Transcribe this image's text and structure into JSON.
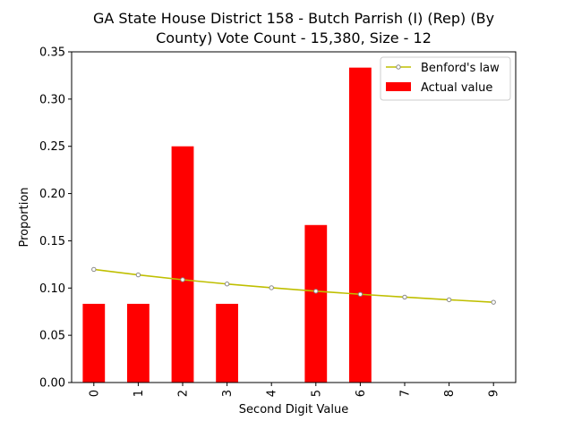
{
  "chart_data": {
    "type": "bar",
    "title_line1": "GA State House District 158 - Butch Parrish (I) (Rep) (By",
    "title_line2": "County) Vote Count - 15,380, Size - 12",
    "xlabel": "Second Digit Value",
    "ylabel": "Proportion",
    "categories": [
      "0",
      "1",
      "2",
      "3",
      "4",
      "5",
      "6",
      "7",
      "8",
      "9"
    ],
    "ylim": [
      0,
      0.35
    ],
    "yticks": [
      "0.00",
      "0.05",
      "0.10",
      "0.15",
      "0.20",
      "0.25",
      "0.30",
      "0.35"
    ],
    "series": [
      {
        "name": "Actual value",
        "kind": "bar",
        "color": "#ff0000",
        "values": [
          0.0833,
          0.0833,
          0.25,
          0.0833,
          0,
          0.1667,
          0.3333,
          0,
          0,
          0
        ]
      },
      {
        "name": "Benford's law",
        "kind": "line",
        "color": "#bfbf00",
        "values": [
          0.1197,
          0.1139,
          0.1088,
          0.1043,
          0.1003,
          0.0967,
          0.0934,
          0.0904,
          0.0876,
          0.085
        ]
      }
    ],
    "legend_position": "top-right",
    "grid": false
  }
}
